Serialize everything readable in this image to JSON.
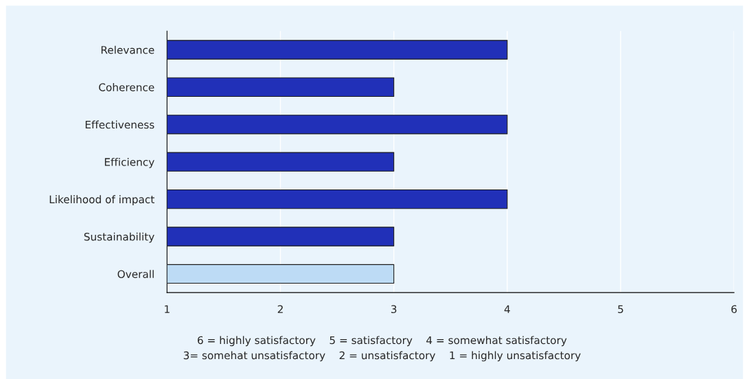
{
  "chart_data": {
    "type": "bar",
    "orientation": "horizontal",
    "categories": [
      "Relevance",
      "Coherence",
      "Effectiveness",
      "Efficiency",
      "Likelihood of impact",
      "Sustainability",
      "Overall"
    ],
    "values": [
      4,
      3,
      4,
      3,
      4,
      3,
      3
    ],
    "colors": [
      "#2130b8",
      "#2130b8",
      "#2130b8",
      "#2130b8",
      "#2130b8",
      "#2130b8",
      "#bddbf5"
    ],
    "xlim": [
      1,
      6
    ],
    "xticks": [
      1,
      2,
      3,
      4,
      5,
      6
    ],
    "grid": "x",
    "annotations": [
      "6 = highly satisfactory    5 = satisfactory    4 = somewhat satisfactory",
      "3= somehat unsatisfactory    2 = unsatisfactory    1 = highly unsatisfactory"
    ]
  }
}
